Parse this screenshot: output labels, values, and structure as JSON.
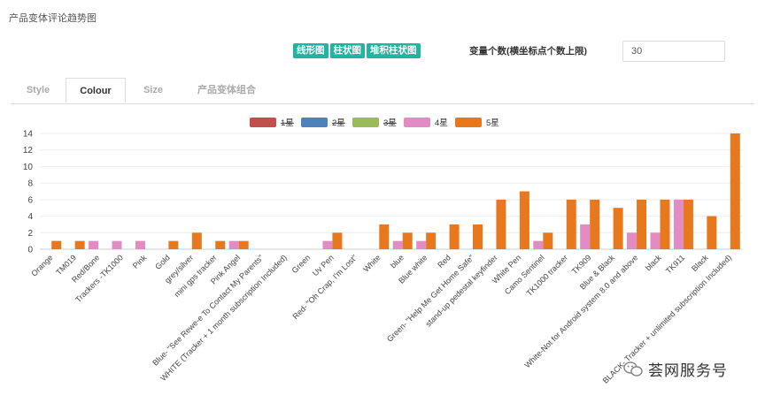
{
  "page": {
    "title": "产品变体评论趋势图"
  },
  "buttons": {
    "line": "线形图",
    "bar": "柱状图",
    "stacked": "堆积柱状图"
  },
  "xcount": {
    "label": "变量个数(横坐标点个数上限)",
    "value": "30"
  },
  "tabs": [
    {
      "label": "Style",
      "active": false
    },
    {
      "label": "Colour",
      "active": true
    },
    {
      "label": "Size",
      "active": false
    },
    {
      "label": "产品变体组合",
      "active": false
    }
  ],
  "watermark": {
    "text": "荟网服务号",
    "icon": "wechat-icon"
  },
  "chart_data": {
    "type": "bar",
    "ylim": [
      0,
      14
    ],
    "yticks": [
      0,
      2,
      4,
      6,
      8,
      10,
      12,
      14
    ],
    "grid": true,
    "legend_position": "top-center",
    "categories": [
      "Orange",
      "TM019",
      "Red/Bone",
      "Trackers -TK1000",
      "Pink",
      "Gold",
      "grey/silver",
      "mini gps tracker",
      "Pink Angel",
      "Blue- \"See Rewe-e To Contact My Parents\"",
      "WHITE (Tracker + 1 month subscription Included)",
      "Green",
      "Uv Pen",
      "Red- \"Oh Crap, I'm Lost\"",
      "White",
      "blue",
      "Blue white",
      "Red",
      "Green- \"Help Me Get Home Safe\"",
      "stand-up pedestal keyfinder",
      "White Pen",
      "Camo Sentinel",
      "TK1000 tracker",
      "TK909",
      "Blue & Black",
      "White-Not for Android system 8.0 and above",
      "black",
      "TK911",
      "Black",
      "BLACK- Tracker + unlimited subscription Included)"
    ],
    "series": [
      {
        "name": "1星",
        "color": "#c0504d",
        "values": [
          0,
          0,
          0,
          0,
          0,
          0,
          0,
          0,
          0,
          0,
          0,
          0,
          0,
          0,
          0,
          0,
          0,
          0,
          0,
          0,
          0,
          0,
          0,
          0,
          0,
          0,
          0,
          0,
          0,
          0
        ]
      },
      {
        "name": "2星",
        "color": "#4f81bd",
        "values": [
          0,
          0,
          0,
          0,
          0,
          0,
          0,
          0,
          0,
          0,
          0,
          0,
          0,
          0,
          0,
          0,
          0,
          0,
          0,
          0,
          0,
          0,
          0,
          0,
          0,
          0,
          0,
          0,
          0,
          0
        ]
      },
      {
        "name": "3星",
        "color": "#9bbb59",
        "values": [
          0,
          0,
          0,
          0,
          0,
          0,
          0,
          0,
          0,
          0,
          0,
          0,
          0,
          0,
          0,
          0,
          0,
          0,
          0,
          0,
          0,
          0,
          0,
          0,
          0,
          0,
          0,
          0,
          0,
          0
        ]
      },
      {
        "name": "4星",
        "color": "#e38cc4",
        "values": [
          0,
          0,
          1,
          1,
          1,
          0,
          0,
          0,
          1,
          0,
          0,
          0,
          1,
          0,
          0,
          1,
          1,
          0,
          0,
          0,
          0,
          1,
          0,
          3,
          0,
          2,
          2,
          6,
          0,
          0
        ]
      },
      {
        "name": "5星",
        "color": "#e8781e",
        "values": [
          1,
          1,
          0,
          0,
          0,
          1,
          2,
          1,
          1,
          0,
          0,
          0,
          2,
          0,
          3,
          2,
          2,
          3,
          3,
          6,
          7,
          2,
          6,
          6,
          5,
          6,
          6,
          6,
          4,
          14
        ]
      }
    ]
  }
}
